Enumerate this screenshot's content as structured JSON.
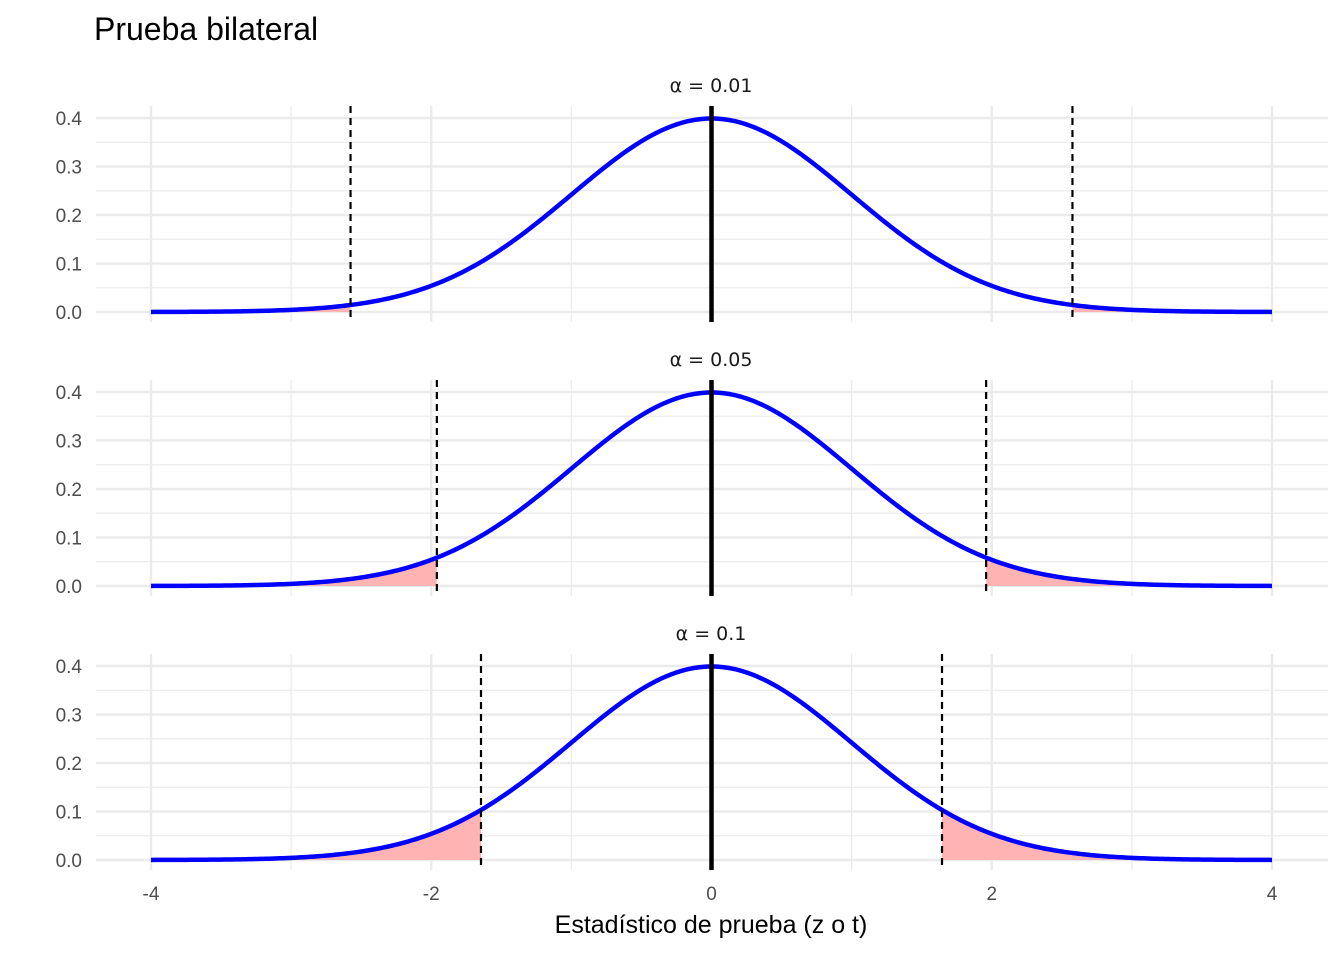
{
  "chart_data": {
    "type": "line",
    "title": "Prueba bilateral",
    "xlabel": "Estadístico de prueba (z o t)",
    "ylabel": "",
    "xlim": [
      -4,
      4
    ],
    "ylim": [
      0,
      0.4
    ],
    "x_ticks": [
      -4,
      -2,
      0,
      2,
      4
    ],
    "x_tick_labels": [
      "-4",
      "-2",
      "0",
      "2",
      "4"
    ],
    "y_ticks": [
      0.0,
      0.1,
      0.2,
      0.3,
      0.4
    ],
    "y_tick_labels": [
      "0.0",
      "0.1",
      "0.2",
      "0.3",
      "0.4"
    ],
    "grid": true,
    "distribution": "standard normal density",
    "center_line_x": 0,
    "colors": {
      "curve": "#0000ff",
      "rejection_fill": "#ffb3b3",
      "critical_line": "#000000",
      "center_line": "#000000",
      "grid": "#ebebeb"
    },
    "panels": [
      {
        "label": "α = 0.01",
        "alpha": 0.01,
        "critical_values": [
          -2.576,
          2.576
        ]
      },
      {
        "label": "α = 0.05",
        "alpha": 0.05,
        "critical_values": [
          -1.96,
          1.96
        ]
      },
      {
        "label": "α = 0.1",
        "alpha": 0.1,
        "critical_values": [
          -1.645,
          1.645
        ]
      }
    ]
  }
}
